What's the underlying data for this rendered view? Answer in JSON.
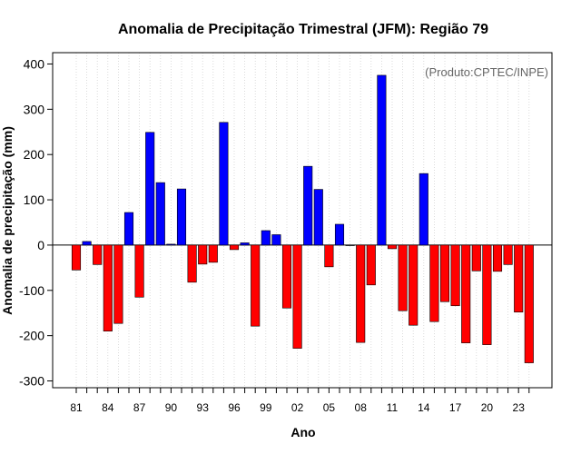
{
  "chart_data": {
    "type": "bar",
    "title": "Anomalia de Precipitação Trimestral (JFM): Região 79",
    "xlabel": "Ano",
    "ylabel": "Anomalia de precipitação (mm)",
    "source_note": "(Produto:CPTEC/INPE)",
    "ylim": [
      -315,
      425
    ],
    "yticks": [
      -300,
      -200,
      -100,
      0,
      100,
      200,
      300,
      400
    ],
    "grid": "vertical dotted lines at each year",
    "tick_labels": [
      "81",
      "84",
      "87",
      "90",
      "93",
      "96",
      "99",
      "02",
      "05",
      "08",
      "11",
      "14",
      "17",
      "20",
      "23"
    ],
    "x": [
      "1981",
      "1982",
      "1983",
      "1984",
      "1985",
      "1986",
      "1987",
      "1988",
      "1989",
      "1990",
      "1991",
      "1992",
      "1993",
      "1994",
      "1995",
      "1996",
      "1997",
      "1998",
      "1999",
      "2000",
      "2001",
      "2002",
      "2003",
      "2004",
      "2005",
      "2006",
      "2007",
      "2008",
      "2009",
      "2010",
      "2011",
      "2012",
      "2013",
      "2014",
      "2015",
      "2016",
      "2017",
      "2018",
      "2019",
      "2020",
      "2021",
      "2022",
      "2023",
      "2024"
    ],
    "values": [
      -55,
      8,
      -43,
      -190,
      -173,
      72,
      -115,
      249,
      138,
      2,
      124,
      -82,
      -42,
      -38,
      271,
      -10,
      5,
      -179,
      32,
      23,
      -139,
      -228,
      174,
      123,
      -48,
      46,
      0,
      -215,
      -88,
      375,
      -8,
      -145,
      -177,
      158,
      -169,
      -125,
      -134,
      -216,
      -57,
      -220,
      -58,
      -43,
      -148,
      -260
    ],
    "colors": {
      "positive": "#0000ff",
      "negative": "#ff0000"
    }
  }
}
